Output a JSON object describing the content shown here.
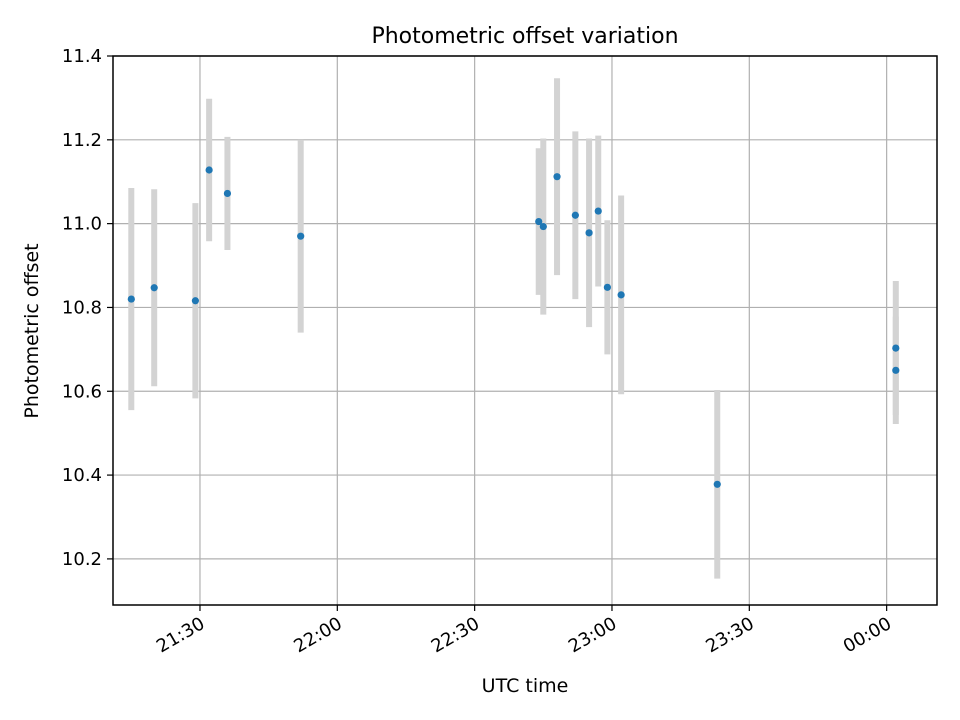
{
  "chart_data": {
    "type": "scatter",
    "title": "Photometric offset variation",
    "xlabel": "UTC time",
    "ylabel": "Photometric offset",
    "grid": true,
    "x_axis": {
      "type": "time",
      "range": [
        "21:11",
        "00:11"
      ],
      "ticks": [
        {
          "label": "21:30",
          "time": "21:30"
        },
        {
          "label": "22:00",
          "time": "22:00"
        },
        {
          "label": "22:30",
          "time": "22:30"
        },
        {
          "label": "23:00",
          "time": "23:00"
        },
        {
          "label": "23:30",
          "time": "23:30"
        },
        {
          "label": "00:00",
          "time": "00:00"
        }
      ]
    },
    "y_axis": {
      "range": [
        10.09,
        11.4
      ],
      "ticks": [
        {
          "label": "10.2",
          "value": 10.2
        },
        {
          "label": "10.4",
          "value": 10.4
        },
        {
          "label": "10.6",
          "value": 10.6
        },
        {
          "label": "10.8",
          "value": 10.8
        },
        {
          "label": "11.0",
          "value": 11.0
        },
        {
          "label": "11.2",
          "value": 11.2
        },
        {
          "label": "11.4",
          "value": 11.4
        }
      ]
    },
    "point_color": "#1f77b4",
    "errorbar_color": "#d3d3d3",
    "points": [
      {
        "time": "21:15",
        "y": 10.82,
        "yerr": 0.265
      },
      {
        "time": "21:20",
        "y": 10.847,
        "yerr": 0.235
      },
      {
        "time": "21:29",
        "y": 10.816,
        "yerr": 0.233
      },
      {
        "time": "21:32",
        "y": 11.128,
        "yerr": 0.17
      },
      {
        "time": "21:36",
        "y": 11.072,
        "yerr": 0.135
      },
      {
        "time": "21:52",
        "y": 10.97,
        "yerr": 0.23
      },
      {
        "time": "22:44",
        "y": 11.005,
        "yerr": 0.175
      },
      {
        "time": "22:45",
        "y": 10.993,
        "yerr": 0.21
      },
      {
        "time": "22:48",
        "y": 11.112,
        "yerr": 0.235
      },
      {
        "time": "22:52",
        "y": 11.02,
        "yerr": 0.2
      },
      {
        "time": "22:55",
        "y": 10.978,
        "yerr": 0.225
      },
      {
        "time": "22:57",
        "y": 11.03,
        "yerr": 0.18
      },
      {
        "time": "22:59",
        "y": 10.848,
        "yerr": 0.16
      },
      {
        "time": "23:02",
        "y": 10.83,
        "yerr": 0.237
      },
      {
        "time": "23:23",
        "y": 10.378,
        "yerr": 0.225
      },
      {
        "time": "00:02",
        "y": 10.703,
        "yerr": 0.16
      },
      {
        "time": "00:02",
        "y": 10.65,
        "yerr": 0.128
      }
    ]
  }
}
